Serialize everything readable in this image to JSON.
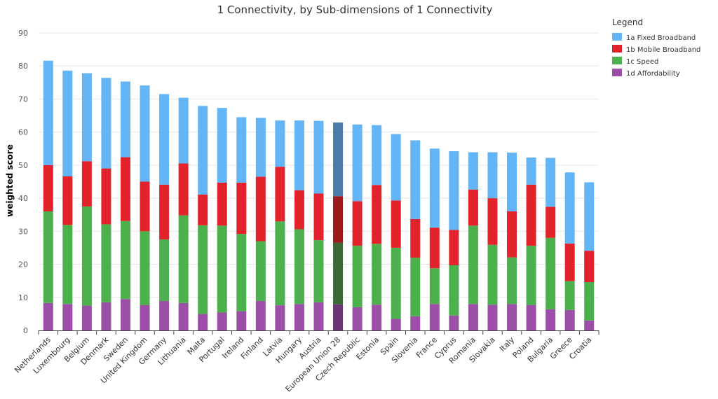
{
  "chart_data": {
    "type": "bar",
    "stacked": true,
    "title": "1 Connectivity, by Sub-dimensions of 1 Connectivity",
    "xlabel": "",
    "ylabel": "weighted score",
    "ylim": [
      0,
      90
    ],
    "yticks": [
      0,
      10,
      20,
      30,
      40,
      50,
      60,
      70,
      80,
      90
    ],
    "grid": true,
    "legend": {
      "title": "Legend",
      "position": "right"
    },
    "highlight_category": "European Union 28",
    "categories": [
      "Netherlands",
      "Luxembourg",
      "Belgium",
      "Denmark",
      "Sweden",
      "United Kingdom",
      "Germany",
      "Lithuania",
      "Malta",
      "Portugal",
      "Ireland",
      "Finland",
      "Latvia",
      "Hungary",
      "Austria",
      "European Union 28",
      "Czech Republic",
      "Estonia",
      "Spain",
      "Slovenia",
      "France",
      "Cyprus",
      "Romania",
      "Slovakia",
      "Italy",
      "Poland",
      "Bulgaria",
      "Greece",
      "Croatia"
    ],
    "series": [
      {
        "name": "1d Affordability",
        "color": "#9b4fa6",
        "highlight_color": "#6a3575",
        "values": [
          8.3,
          8.0,
          7.5,
          8.5,
          9.5,
          7.7,
          8.9,
          8.3,
          5.0,
          5.4,
          5.8,
          8.9,
          7.6,
          8.0,
          8.5,
          7.9,
          7.0,
          7.8,
          3.5,
          4.3,
          8.0,
          4.5,
          8.0,
          7.8,
          8.0,
          7.7,
          6.4,
          6.2,
          3.0
        ]
      },
      {
        "name": "1c Speed",
        "color": "#4cb04c",
        "highlight_color": "#3a6b35",
        "values": [
          27.7,
          23.9,
          30.0,
          23.6,
          23.6,
          22.3,
          18.6,
          26.5,
          26.8,
          26.3,
          23.4,
          18.1,
          25.4,
          22.6,
          18.8,
          18.6,
          18.6,
          18.4,
          21.5,
          17.7,
          10.8,
          15.2,
          23.7,
          18.1,
          14.1,
          17.9,
          21.6,
          8.7,
          11.6
        ]
      },
      {
        "name": "1b Mobile Broadband",
        "color": "#e3232b",
        "highlight_color": "#9a1b1b",
        "values": [
          14.0,
          14.7,
          13.7,
          16.9,
          19.3,
          15.0,
          16.6,
          15.7,
          9.3,
          13.0,
          15.5,
          19.5,
          16.5,
          11.8,
          14.1,
          14.1,
          13.5,
          17.8,
          14.3,
          11.7,
          12.3,
          10.7,
          10.9,
          14.1,
          13.9,
          18.5,
          9.4,
          11.4,
          9.5
        ]
      },
      {
        "name": "1a Fixed Broadband",
        "color": "#64b5f6",
        "highlight_color": "#4a7bab",
        "values": [
          31.6,
          32.0,
          26.6,
          27.4,
          22.9,
          29.1,
          27.4,
          19.9,
          26.8,
          22.6,
          19.8,
          17.8,
          14.0,
          21.1,
          22.0,
          22.3,
          23.2,
          18.1,
          20.1,
          23.8,
          23.9,
          23.8,
          11.3,
          13.9,
          17.8,
          8.2,
          14.8,
          21.5,
          20.7
        ]
      }
    ],
    "legend_order": [
      "1a Fixed Broadband",
      "1b Mobile Broadband",
      "1c Speed",
      "1d Affordability"
    ]
  }
}
